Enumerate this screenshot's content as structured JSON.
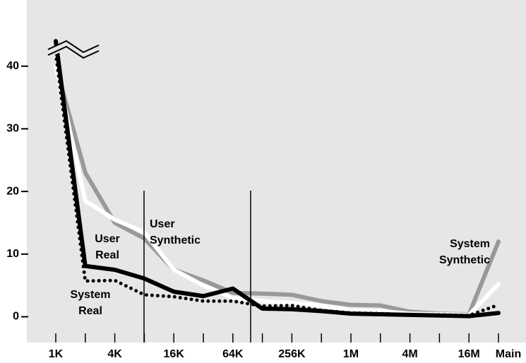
{
  "chart_data": {
    "type": "line",
    "categories": [
      "1K",
      null,
      "4K",
      null,
      "16K",
      null,
      "64K",
      null,
      "256K",
      null,
      "1M",
      null,
      "4M",
      null,
      "16M",
      "Main"
    ],
    "ylim": [
      -4,
      50
    ],
    "yticks": [
      0,
      10,
      20,
      30,
      40
    ],
    "series": [
      {
        "name": "System Synthetic",
        "color": "#999999",
        "style": "solid",
        "values": [
          40,
          23,
          15,
          12.5,
          7.5,
          5.8,
          3.8,
          3.7,
          3.5,
          2.5,
          1.9,
          1.8,
          0.8,
          0.5,
          0.4,
          12
        ]
      },
      {
        "name": "User Synthetic",
        "color": "#ffffff",
        "style": "solid",
        "values": [
          40,
          18.5,
          15.5,
          13.5,
          7.5,
          5,
          3,
          2.5,
          2.2,
          1.8,
          1,
          0.9,
          0.5,
          0.4,
          0.3,
          5.2
        ]
      },
      {
        "name": "System Real",
        "color": "#000000",
        "style": "dotted",
        "values": [
          42,
          5.7,
          5.8,
          3.5,
          3.2,
          2.5,
          2.5,
          1.7,
          1.8,
          1,
          0.6,
          0.5,
          0.3,
          0.3,
          0.2,
          1.9
        ]
      },
      {
        "name": "User Real",
        "color": "#000000",
        "style": "solid",
        "values": [
          44,
          8.1,
          7.5,
          6.1,
          4,
          3.3,
          4.5,
          1.3,
          1.2,
          0.9,
          0.5,
          0.4,
          0.3,
          0.2,
          0.1,
          0.6
        ]
      }
    ]
  }
}
